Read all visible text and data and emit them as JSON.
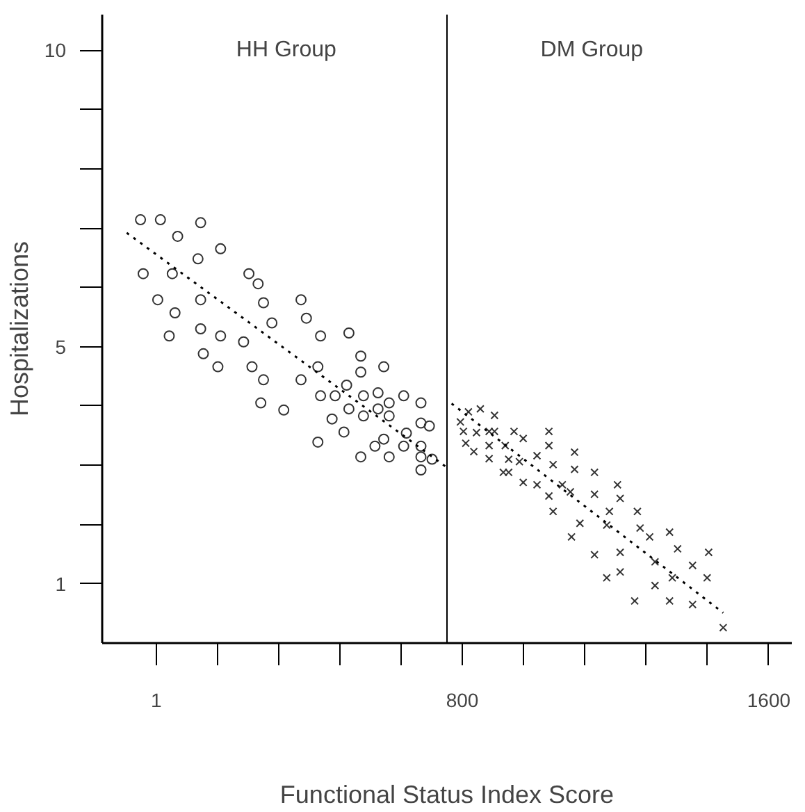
{
  "chart_data": {
    "type": "scatter",
    "xlabel": "Functional Status Index Score",
    "ylabel": "Hospitalizations",
    "xlim": [
      -140,
      1660
    ],
    "ylim": [
      0,
      10.6
    ],
    "xticks": [
      1,
      {
        "value": 160,
        "label": null
      },
      {
        "value": 320,
        "label": null
      },
      {
        "value": 480,
        "label": null
      },
      {
        "value": 640,
        "label": null
      },
      800,
      {
        "value": 960,
        "label": null
      },
      {
        "value": 1120,
        "label": null
      },
      {
        "value": 1280,
        "label": null
      },
      {
        "value": 1440,
        "label": null
      },
      1600
    ],
    "yticks": [
      1,
      {
        "value": 2,
        "label": null
      },
      {
        "value": 3,
        "label": null
      },
      {
        "value": 4,
        "label": null
      },
      5,
      {
        "value": 6,
        "label": null
      },
      {
        "value": 7,
        "label": null
      },
      {
        "value": 8,
        "label": null
      },
      {
        "value": 9,
        "label": null
      },
      10
    ],
    "grid": false,
    "ref_lines": [
      {
        "axis": "x",
        "value": 760,
        "color": "#000000"
      }
    ],
    "annotations": [
      "HH Group",
      "DM Group"
    ],
    "series": [
      {
        "marker": "circle",
        "color": "#333333",
        "x": [
          -40,
          12,
          117,
          57,
          169,
          110,
          -33,
          43,
          243,
          267,
          5,
          117,
          281,
          379,
          50,
          393,
          303,
          35,
          117,
          169,
          229,
          430,
          504,
          124,
          162,
          251,
          423,
          535,
          535,
          595,
          281,
          379,
          498,
          274,
          334,
          430,
          468,
          542,
          580,
          647,
          692,
          504,
          580,
          609,
          542,
          609,
          460,
          491,
          692,
          714,
          423,
          595,
          654,
          572,
          647,
          692,
          535,
          609,
          692,
          721,
          692
        ],
        "values": [
          7.14,
          7.14,
          7.09,
          6.86,
          6.65,
          6.48,
          6.23,
          6.23,
          6.23,
          6.06,
          5.79,
          5.79,
          5.74,
          5.79,
          5.57,
          5.48,
          5.4,
          5.18,
          5.3,
          5.18,
          5.08,
          5.18,
          5.23,
          4.88,
          4.66,
          4.66,
          4.66,
          4.84,
          4.57,
          4.66,
          4.44,
          4.44,
          4.35,
          4.05,
          3.93,
          4.17,
          4.17,
          4.17,
          4.22,
          4.17,
          4.05,
          3.95,
          3.95,
          4.05,
          3.83,
          3.83,
          3.78,
          3.56,
          3.71,
          3.66,
          3.39,
          3.44,
          3.54,
          3.32,
          3.32,
          3.32,
          3.14,
          3.14,
          3.14,
          3.1,
          2.92
        ]
      },
      {
        "type": "line",
        "line_style": "dotted",
        "color": "#000000",
        "x": [
          -76,
          760
        ],
        "values": [
          6.92,
          2.96
        ]
      },
      {
        "marker": "cross",
        "color": "#333333",
        "x": [
          795,
          816,
          847,
          884,
          803,
          837,
          870,
          884,
          935,
          959,
          1026,
          809,
          830,
          870,
          912,
          921,
          870,
          949,
          995,
          1026,
          1037,
          1093,
          907,
          921,
          959,
          995,
          1061,
          1082,
          1093,
          1145,
          1026,
          1145,
          1205,
          1212,
          1037,
          1184,
          1257,
          1085,
          1107,
          1177,
          1264,
          1289,
          1341,
          1145,
          1212,
          1362,
          1443,
          1303,
          1401,
          1177,
          1212,
          1303,
          1348,
          1439,
          1250,
          1341,
          1401,
          1481
        ],
        "values": [
          3.73,
          3.9,
          3.95,
          3.84,
          3.57,
          3.55,
          3.57,
          3.57,
          3.57,
          3.45,
          3.57,
          3.37,
          3.23,
          3.33,
          3.33,
          3.1,
          3.11,
          3.06,
          3.16,
          3.33,
          3.01,
          3.22,
          2.88,
          2.88,
          2.71,
          2.67,
          2.67,
          2.55,
          2.93,
          2.88,
          2.48,
          2.51,
          2.67,
          2.44,
          2.22,
          2.22,
          2.22,
          1.79,
          2.02,
          1.99,
          1.94,
          1.79,
          1.87,
          1.49,
          1.53,
          1.59,
          1.53,
          1.37,
          1.31,
          1.1,
          1.2,
          0.97,
          1.1,
          1.1,
          0.71,
          0.71,
          0.65,
          0.26
        ]
      },
      {
        "type": "line",
        "line_style": "dotted",
        "color": "#000000",
        "x": [
          772,
          1481
        ],
        "values": [
          4.04,
          0.51
        ]
      }
    ]
  }
}
